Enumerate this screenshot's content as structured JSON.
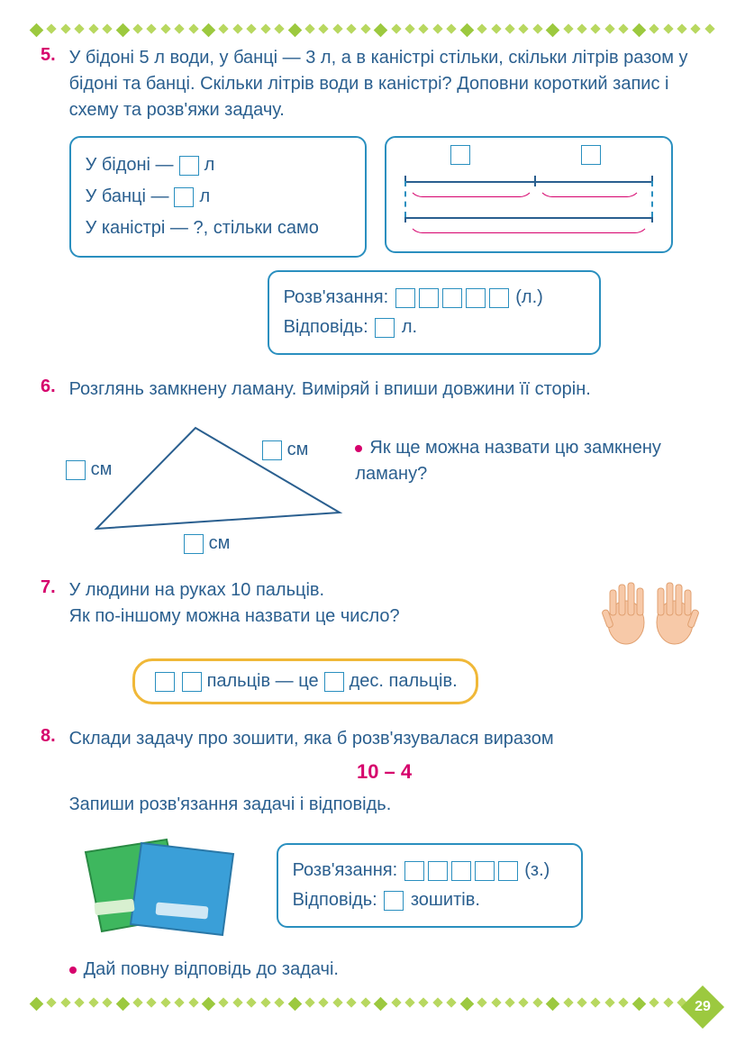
{
  "page_number": "29",
  "colors": {
    "text": "#2a5f8f",
    "accent": "#d6006c",
    "panel_border": "#2a8fbf",
    "diamond": "#b8d860",
    "diamond_big": "#9cc93f",
    "yellow": "#f0b838"
  },
  "task5": {
    "num": "5.",
    "text": "У бідоні 5 л води, у банці — 3 л, а в каністрі стільки, скільки літрів разом у бідоні та банці. Скільки літрів води в каністрі? Доповни короткий запис і схему та розв'яжи задачу.",
    "left": {
      "l1a": "У бідоні —",
      "l1b": "л",
      "l2a": "У банці —",
      "l2b": "л",
      "l3": "У каністрі — ?, стільки само"
    },
    "sol_label": "Розв'язання:",
    "sol_unit": "(л.)",
    "ans_label": "Відповідь:",
    "ans_unit": "л."
  },
  "task6": {
    "num": "6.",
    "text": "Розглянь замкнену ламану. Виміряй і впиши довжини її сторін.",
    "unit": "см",
    "question": "Як ще можна назвати цю замкнену ламану?"
  },
  "task7": {
    "num": "7.",
    "l1": "У людини на руках 10 пальців.",
    "l2": "Як по-іншому можна назвати це число?",
    "pill_a": "пальців — це",
    "pill_b": "дес. пальців."
  },
  "task8": {
    "num": "8.",
    "l1": "Склади задачу про зошити, яка б розв'язувалася виразом",
    "expr": "10 – 4",
    "l2": "Запиши розв'язання задачі і відповідь.",
    "sol_label": "Розв'язання:",
    "sol_unit": "(з.)",
    "ans_label": "Відповідь:",
    "ans_unit": "зошитів.",
    "bullet": "Дай повну відповідь до задачі."
  }
}
